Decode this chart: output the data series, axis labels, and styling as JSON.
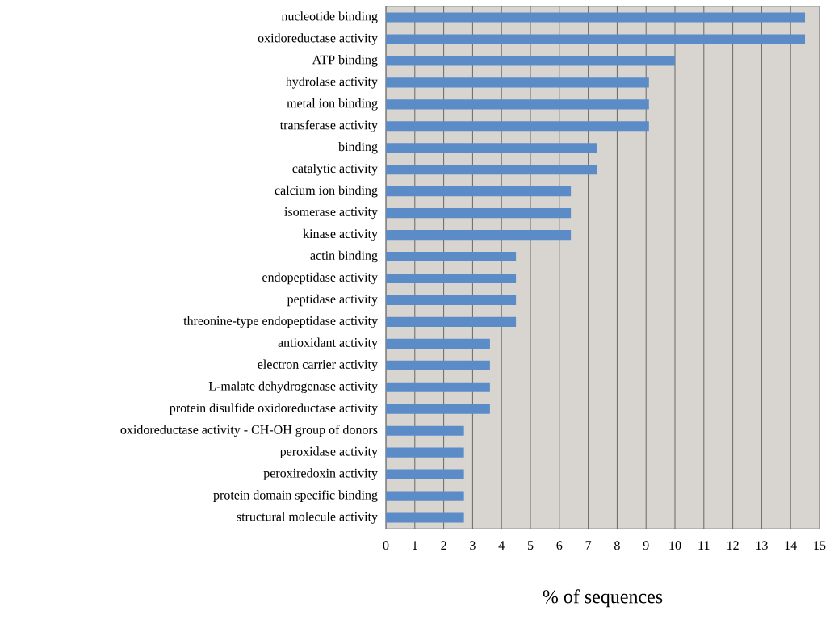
{
  "chart_data": {
    "type": "bar",
    "orientation": "horizontal",
    "xlabel": "% of sequences",
    "categories": [
      "nucleotide binding",
      "oxidoreductase activity",
      "ATP binding",
      "hydrolase activity",
      "metal ion binding",
      "transferase activity",
      "binding",
      "catalytic activity",
      "calcium ion binding",
      "isomerase activity",
      "kinase activity",
      "actin binding",
      "endopeptidase activity",
      "peptidase activity",
      "threonine-type endopeptidase activity",
      "antioxidant activity",
      "electron carrier activity",
      "L-malate dehydrogenase activity",
      "protein disulfide oxidoreductase activity",
      "oxidoreductase activity - CH-OH group of donors",
      "peroxidase activity",
      "peroxiredoxin activity",
      "protein domain specific binding",
      "structural molecule activity"
    ],
    "values": [
      14.5,
      14.5,
      10,
      9.1,
      9.1,
      9.1,
      7.3,
      7.3,
      6.4,
      6.4,
      6.4,
      4.5,
      4.5,
      4.5,
      4.5,
      3.6,
      3.6,
      3.6,
      3.6,
      2.7,
      2.7,
      2.7,
      2.7,
      2.7
    ],
    "color": "#5b8cc8",
    "xlim": [
      0,
      15
    ],
    "xticks": [
      0,
      1,
      2,
      3,
      4,
      5,
      6,
      7,
      8,
      9,
      10,
      11,
      12,
      13,
      14,
      15
    ],
    "grid": "x"
  }
}
